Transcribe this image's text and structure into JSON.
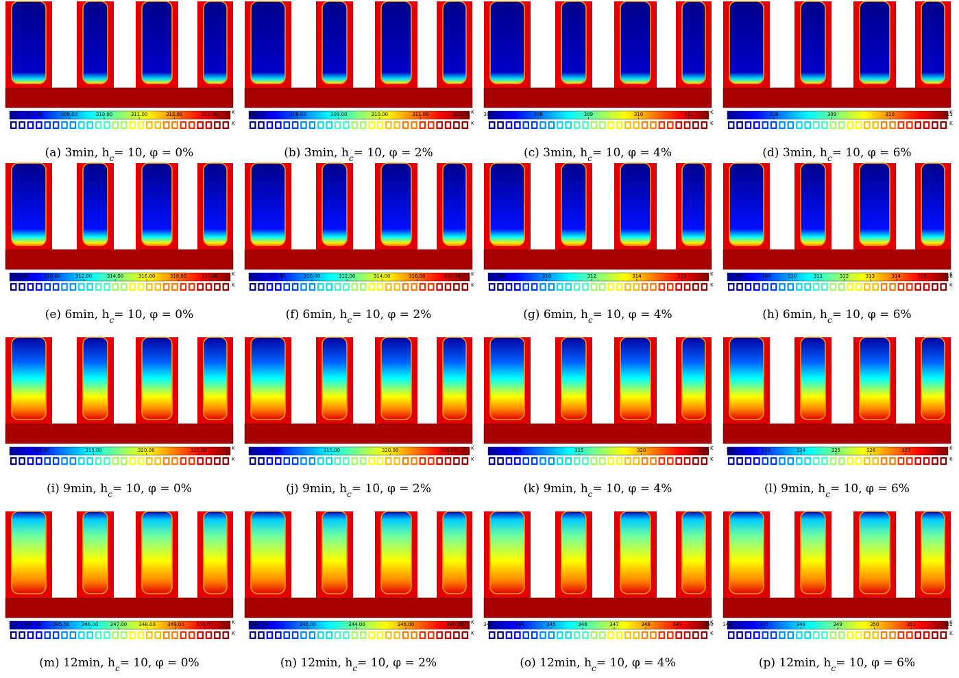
{
  "unit": "K",
  "panels": [
    {
      "prefix": "(a) 3min, h",
      "sub": "c",
      "suffix": "= 10, φ = 0%",
      "clim": [
        307.3,
        313.6
      ],
      "cticks": [
        {
          "value": 308,
          "label": "308.00"
        },
        {
          "value": 309,
          "label": "309.00"
        },
        {
          "value": 310,
          "label": "310.00"
        },
        {
          "value": 311,
          "label": "311.00"
        },
        {
          "value": 312,
          "label": "312.00"
        },
        {
          "value": 313,
          "label": "313.00"
        }
      ]
    },
    {
      "prefix": "(b) 3min, h",
      "sub": "c",
      "suffix": "= 10, φ = 2%",
      "clim": [
        306.8,
        312.2
      ],
      "cticks": [
        {
          "value": 307,
          "label": "307.00"
        },
        {
          "value": 308,
          "label": "308.00"
        },
        {
          "value": 309,
          "label": "309.00"
        },
        {
          "value": 310,
          "label": "310.00"
        },
        {
          "value": 311,
          "label": "311.00"
        },
        {
          "value": 312,
          "label": "312.00"
        }
      ]
    },
    {
      "prefix": "(c) 3min, h",
      "sub": "c",
      "suffix": "= 10, φ = 4%",
      "clim": [
        307,
        311.4
      ],
      "cticks": [
        307,
        308,
        309,
        310,
        311
      ]
    },
    {
      "prefix": "(d) 3min, h",
      "sub": "c",
      "suffix": "= 10, φ = 6%",
      "clim": [
        307.2,
        311
      ],
      "cticks": [
        308,
        309,
        310,
        311
      ]
    },
    {
      "prefix": "(e) 6min, h",
      "sub": "c",
      "suffix": "= 10, φ = 0%",
      "clim": [
        307.3,
        321.3
      ],
      "cticks": [
        {
          "value": 308,
          "label": "308.00"
        },
        {
          "value": 310,
          "label": "310.00"
        },
        {
          "value": 312,
          "label": "312.00"
        },
        {
          "value": 314,
          "label": "314.00"
        },
        {
          "value": 316,
          "label": "316.00"
        },
        {
          "value": 318,
          "label": "318.00"
        },
        {
          "value": 320,
          "label": "320.00"
        }
      ]
    },
    {
      "prefix": "(f) 6min, h",
      "sub": "c",
      "suffix": "= 10, φ = 2%",
      "clim": [
        306.4,
        319
      ],
      "cticks": [
        {
          "value": 308,
          "label": "308.00"
        },
        {
          "value": 310,
          "label": "310.00"
        },
        {
          "value": 312,
          "label": "312.00"
        },
        {
          "value": 314,
          "label": "314.00"
        },
        {
          "value": 316,
          "label": "316.00"
        },
        {
          "value": 318,
          "label": "318.00"
        }
      ]
    },
    {
      "prefix": "(g) 6min, h",
      "sub": "c",
      "suffix": "= 10, φ = 4%",
      "clim": [
        307.4,
        317.2
      ],
      "cticks": [
        308,
        310,
        312,
        314,
        316
      ]
    },
    {
      "prefix": "(h) 6min, h",
      "sub": "c",
      "suffix": "= 10, φ = 6%",
      "clim": [
        307.5,
        316
      ],
      "cticks": [
        308,
        309,
        310,
        311,
        312,
        313,
        314,
        315,
        316
      ]
    },
    {
      "prefix": "(i) 9min, h",
      "sub": "c",
      "suffix": "= 10, φ = 0%",
      "clim": [
        307,
        328
      ],
      "cticks": [
        {
          "value": 310,
          "label": "310.00"
        },
        {
          "value": 315,
          "label": "315.00"
        },
        {
          "value": 320,
          "label": "320.00"
        },
        {
          "value": 325,
          "label": "325.00"
        }
      ]
    },
    {
      "prefix": "(j) 9min, h",
      "sub": "c",
      "suffix": "= 10, φ = 2%",
      "clim": [
        307.9,
        326.8
      ],
      "cticks": [
        {
          "value": 310,
          "label": "310.00"
        },
        {
          "value": 315,
          "label": "315.00"
        },
        {
          "value": 320,
          "label": "320.00"
        },
        {
          "value": 325,
          "label": "325.00"
        }
      ]
    },
    {
      "prefix": "(k) 9min, h",
      "sub": "c",
      "suffix": "= 10, φ = 4%",
      "clim": [
        307.7,
        325.4
      ],
      "cticks": [
        310,
        315,
        320,
        325
      ]
    },
    {
      "prefix": "(l) 9min, h",
      "sub": "c",
      "suffix": "= 10, φ = 6%",
      "clim": [
        321.9,
        328.2
      ],
      "cticks": [
        322,
        323,
        324,
        325,
        326,
        327
      ]
    },
    {
      "prefix": "(m) 12min, h",
      "sub": "c",
      "suffix": "= 10, φ = 0%",
      "clim": [
        343.2,
        350.9
      ],
      "cticks": [
        {
          "value": 344,
          "label": "344.00"
        },
        {
          "value": 345,
          "label": "345.00"
        },
        {
          "value": 346,
          "label": "346.00"
        },
        {
          "value": 347,
          "label": "347.00"
        },
        {
          "value": 348,
          "label": "348.00"
        },
        {
          "value": 349,
          "label": "349.00"
        },
        {
          "value": 350,
          "label": "350.00"
        }
      ]
    },
    {
      "prefix": "(n) 12min, h",
      "sub": "c",
      "suffix": "= 10, φ = 2%",
      "clim": [
        339.6,
        348.6
      ],
      "cticks": [
        {
          "value": 340,
          "label": "340.00"
        },
        {
          "value": 342,
          "label": "342.00"
        },
        {
          "value": 344,
          "label": "344.00"
        },
        {
          "value": 346,
          "label": "346.00"
        },
        {
          "value": 348,
          "label": "348.00"
        }
      ]
    },
    {
      "prefix": "(o) 12min, h",
      "sub": "c",
      "suffix": "= 10, φ = 4%",
      "clim": [
        343,
        350
      ],
      "cticks": [
        343,
        344,
        345,
        346,
        347,
        348,
        349,
        350
      ]
    },
    {
      "prefix": "(p) 12min, h",
      "sub": "c",
      "suffix": "= 10, φ = 6%",
      "clim": [
        346,
        352
      ],
      "cticks": [
        346,
        347,
        348,
        349,
        350,
        351,
        352
      ]
    }
  ]
}
